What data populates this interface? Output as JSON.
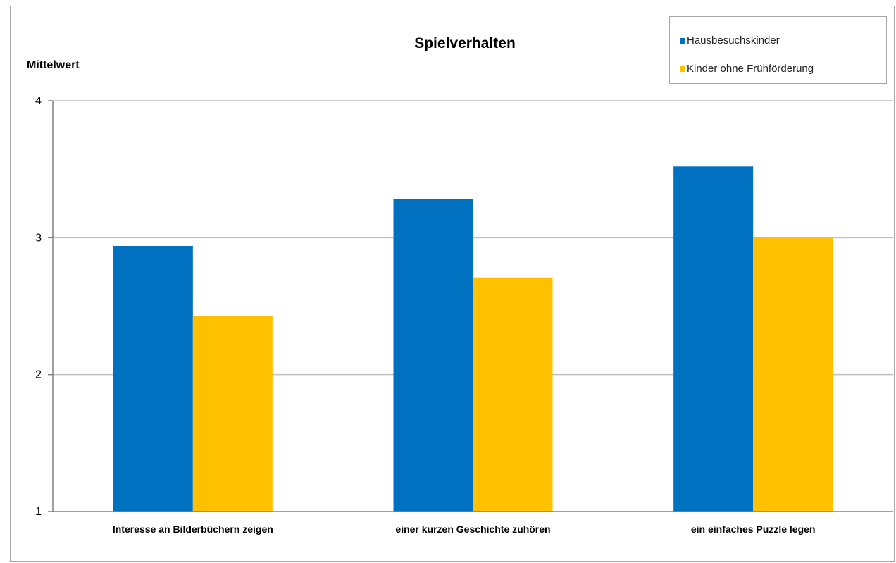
{
  "chart_data": {
    "type": "bar",
    "title": "Spielverhalten",
    "ylabel": "Mittelwert",
    "xlabel": "",
    "ylim": [
      1,
      4
    ],
    "yticks": [
      1,
      2,
      3,
      4
    ],
    "grid": true,
    "legend_position": "top-right",
    "categories": [
      "Interesse an Bilderbüchern zeigen",
      "einer kurzen Geschichte zuhören",
      "ein einfaches Puzzle legen"
    ],
    "series": [
      {
        "name": "Hausbesuchskinder",
        "color": "#0070C0",
        "values": [
          2.94,
          3.28,
          3.52
        ]
      },
      {
        "name": "Kinder ohne Frühförderung",
        "color": "#FFC000",
        "values": [
          2.43,
          2.71,
          3.0
        ]
      }
    ]
  }
}
